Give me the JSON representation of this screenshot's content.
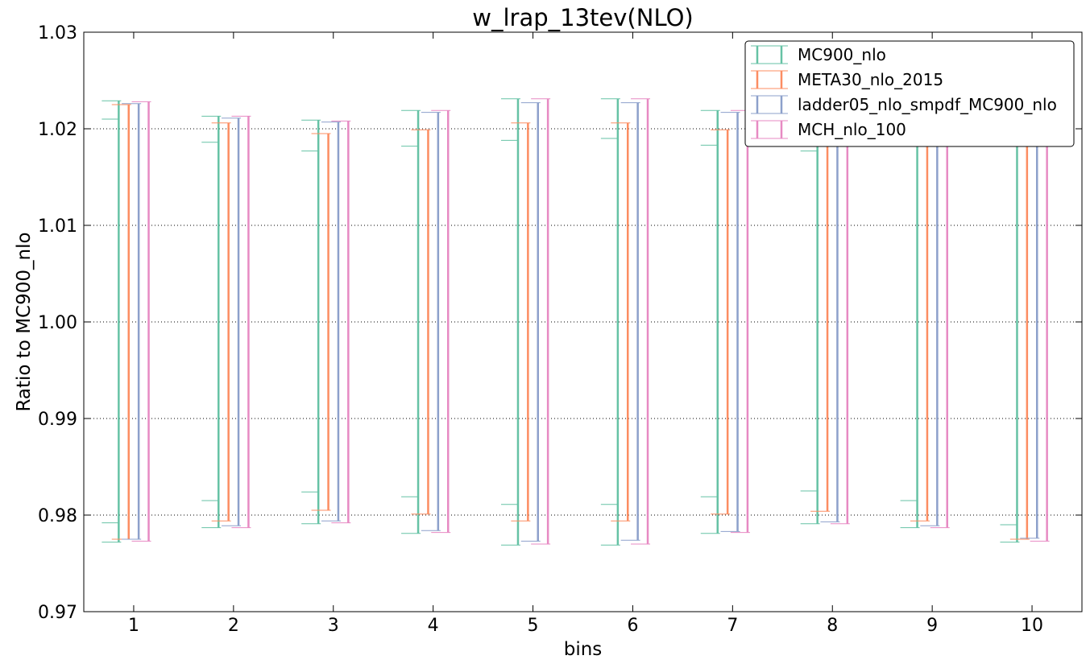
{
  "chart_data": {
    "type": "errorbar",
    "title": "w_lrap_13tev(NLO)",
    "xlabel": "bins",
    "ylabel": "Ratio to MC900_nlo",
    "xlim": [
      0.5,
      10.5
    ],
    "ylim": [
      0.97,
      1.03
    ],
    "yticks": [
      "0.97",
      "0.98",
      "0.99",
      "1.00",
      "1.01",
      "1.02",
      "1.03"
    ],
    "xticks": [
      "1",
      "2",
      "3",
      "4",
      "5",
      "6",
      "7",
      "8",
      "9",
      "10"
    ],
    "grid": "horizontal dotted",
    "legend_position": "top-right",
    "bin_offset": 0.1,
    "series": [
      {
        "name": "MC900_nlo",
        "color": "#66c2a5",
        "outer_lo": [
          0.9772,
          0.9787,
          0.9791,
          0.9781,
          0.9769,
          0.9769,
          0.9781,
          0.9791,
          0.9787,
          0.9772
        ],
        "outer_hi": [
          1.0229,
          1.0213,
          1.0209,
          1.0219,
          1.0231,
          1.0231,
          1.0219,
          1.0209,
          1.0213,
          1.0228
        ],
        "inner_lo": [
          0.9792,
          0.9815,
          0.9824,
          0.9819,
          0.9811,
          0.9811,
          0.9819,
          0.9825,
          0.9815,
          0.979
        ],
        "inner_hi": [
          1.021,
          1.0186,
          1.0177,
          1.0182,
          1.0188,
          1.019,
          1.0183,
          1.0177,
          1.0186,
          1.021
        ]
      },
      {
        "name": "META30_nlo_2015",
        "color": "#fc8d62",
        "outer_lo": [
          0.9775,
          0.9794,
          0.9805,
          0.9801,
          0.9794,
          0.9794,
          0.9801,
          0.9804,
          0.9794,
          0.9775
        ],
        "outer_hi": [
          1.0225,
          1.0206,
          1.0195,
          1.0199,
          1.0206,
          1.0206,
          1.0199,
          1.0196,
          1.0206,
          1.0225
        ],
        "inner_lo": [
          0.9775,
          0.9794,
          0.9805,
          0.9801,
          0.9794,
          0.9794,
          0.9801,
          0.9804,
          0.9794,
          0.9775
        ],
        "inner_hi": [
          1.0225,
          1.0206,
          1.0195,
          1.0199,
          1.0206,
          1.0206,
          1.0199,
          1.0196,
          1.0206,
          1.0225
        ]
      },
      {
        "name": "ladder05_nlo_smpdf_MC900_nlo",
        "color": "#8da0cb",
        "outer_lo": [
          0.9775,
          0.9789,
          0.9794,
          0.9784,
          0.9773,
          0.9774,
          0.9783,
          0.9793,
          0.9789,
          0.9776
        ],
        "outer_hi": [
          1.0226,
          1.0211,
          1.0207,
          1.0217,
          1.0227,
          1.0227,
          1.0217,
          1.0207,
          1.0211,
          1.0226
        ],
        "inner_lo": [
          0.9775,
          0.9789,
          0.9794,
          0.9784,
          0.9773,
          0.9774,
          0.9783,
          0.9793,
          0.9789,
          0.9776
        ],
        "inner_hi": [
          1.0226,
          1.0211,
          1.0207,
          1.0217,
          1.0227,
          1.0227,
          1.0217,
          1.0207,
          1.0211,
          1.0226
        ]
      },
      {
        "name": "MCH_nlo_100",
        "color": "#e78ac3",
        "outer_lo": [
          0.9773,
          0.9787,
          0.9792,
          0.9782,
          0.977,
          0.977,
          0.9782,
          0.9791,
          0.9787,
          0.9773
        ],
        "outer_hi": [
          1.0228,
          1.0213,
          1.0208,
          1.0219,
          1.0231,
          1.0231,
          1.0219,
          1.0209,
          1.0213,
          1.0228
        ],
        "inner_lo": [
          0.9773,
          0.9787,
          0.9792,
          0.9782,
          0.977,
          0.977,
          0.9782,
          0.9791,
          0.9787,
          0.9773
        ],
        "inner_hi": [
          1.0228,
          1.0213,
          1.0208,
          1.0219,
          1.0231,
          1.0231,
          1.0219,
          1.0209,
          1.0213,
          1.0228
        ]
      }
    ]
  }
}
